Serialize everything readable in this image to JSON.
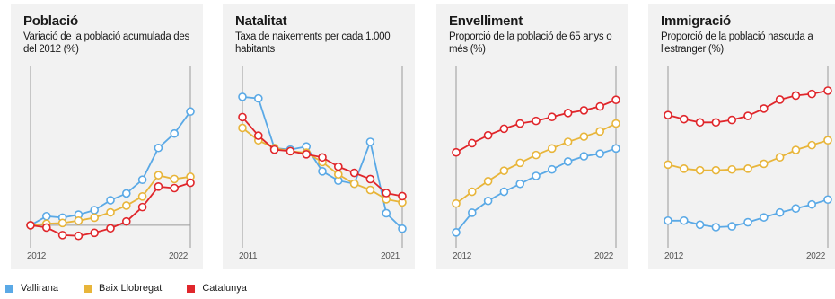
{
  "colors": {
    "Vallirana": "#5aa9e6",
    "Baix Llobregat": "#e8b53a",
    "Catalunya": "#e0262b",
    "axis": "#9a9a9a",
    "bg": "#f2f2f2"
  },
  "legend": [
    {
      "name": "Vallirana",
      "color": "#5aa9e6"
    },
    {
      "name": "Baix Llobregat",
      "color": "#e8b53a"
    },
    {
      "name": "Catalunya",
      "color": "#e0262b"
    }
  ],
  "panels": [
    {
      "title": "Població",
      "subtitle": "Variació de la població acumulada des del 2012 (%)",
      "first_tick": "2012",
      "last_tick": "2022"
    },
    {
      "title": "Natalitat",
      "subtitle": "Taxa de naixements per cada 1.000 habitants",
      "first_tick": "2011",
      "last_tick": "2021"
    },
    {
      "title": "Envelliment",
      "subtitle": "Proporció de la població de 65 anys o més (%)",
      "first_tick": "2012",
      "last_tick": "2022"
    },
    {
      "title": "Immigració",
      "subtitle": "Proporció de la població nascuda a l'estranger (%)",
      "first_tick": "2012",
      "last_tick": "2022"
    }
  ],
  "chart_data": [
    {
      "type": "line",
      "title": "Població",
      "subtitle": "Variació de la població acumulada des del 2012 (%)",
      "x": [
        2012,
        2013,
        2014,
        2015,
        2016,
        2017,
        2018,
        2019,
        2020,
        2021,
        2022
      ],
      "ylim": [
        -2.5,
        20
      ],
      "baseline": 0,
      "series": [
        {
          "name": "Vallirana",
          "values": [
            0,
            1.2,
            1,
            1.4,
            2,
            3.3,
            4.2,
            6,
            10.2,
            12.1,
            15
          ]
        },
        {
          "name": "Baix Llobregat",
          "values": [
            0,
            0.2,
            0.3,
            0.6,
            1,
            1.7,
            2.6,
            3.8,
            6.6,
            6.1,
            6.4
          ]
        },
        {
          "name": "Catalunya",
          "values": [
            0,
            -0.3,
            -1.3,
            -1.4,
            -1,
            -0.4,
            0.5,
            2.4,
            5.1,
            4.9,
            5.6
          ]
        }
      ]
    },
    {
      "type": "line",
      "title": "Natalitat",
      "subtitle": "Taxa de naixements per cada 1.000 habitants",
      "x": [
        2011,
        2012,
        2013,
        2014,
        2015,
        2016,
        2017,
        2018,
        2019,
        2020,
        2021
      ],
      "ylim": [
        4,
        15
      ],
      "series": [
        {
          "name": "Vallirana",
          "values": [
            13.5,
            13.4,
            10.2,
            10.1,
            10.3,
            8.7,
            8.1,
            7.9,
            10.6,
            6,
            5
          ]
        },
        {
          "name": "Baix Llobregat",
          "values": [
            11.5,
            10.7,
            10.2,
            10,
            9.9,
            9.3,
            8.5,
            7.9,
            7.5,
            6.9,
            6.7
          ]
        },
        {
          "name": "Catalunya",
          "values": [
            12.2,
            11,
            10.1,
            10,
            9.8,
            9.6,
            9,
            8.6,
            8.2,
            7.3,
            7.1
          ]
        }
      ]
    },
    {
      "type": "line",
      "title": "Envelliment",
      "subtitle": "Proporció de la població de 65 anys o més (%)",
      "x": [
        2012,
        2013,
        2014,
        2015,
        2016,
        2017,
        2018,
        2019,
        2020,
        2021,
        2022
      ],
      "ylim": [
        8,
        21
      ],
      "series": [
        {
          "name": "Vallirana",
          "values": [
            8.9,
            10.4,
            11.3,
            12,
            12.6,
            13.2,
            13.7,
            14.3,
            14.7,
            14.9,
            15.3
          ]
        },
        {
          "name": "Baix Llobregat",
          "values": [
            11.1,
            12,
            12.8,
            13.6,
            14.2,
            14.8,
            15.3,
            15.8,
            16.2,
            16.6,
            17.2
          ]
        },
        {
          "name": "Catalunya",
          "values": [
            15,
            15.7,
            16.3,
            16.8,
            17.2,
            17.4,
            17.7,
            18,
            18.2,
            18.5,
            19
          ]
        }
      ]
    },
    {
      "type": "line",
      "title": "Immigració",
      "subtitle": "Proporció de la població nascuda a l'estranger (%)",
      "x": [
        2012,
        2013,
        2014,
        2015,
        2016,
        2017,
        2018,
        2019,
        2020,
        2021,
        2022
      ],
      "ylim": [
        5,
        26
      ],
      "series": [
        {
          "name": "Vallirana",
          "values": [
            7.9,
            7.9,
            7.4,
            7.1,
            7.2,
            7.7,
            8.3,
            8.9,
            9.4,
            9.9,
            10.5
          ]
        },
        {
          "name": "Baix Llobregat",
          "values": [
            14.8,
            14.3,
            14.1,
            14.1,
            14.2,
            14.3,
            14.9,
            15.7,
            16.6,
            17.2,
            17.8
          ]
        },
        {
          "name": "Catalunya",
          "values": [
            20.9,
            20.4,
            20,
            20,
            20.3,
            20.8,
            21.7,
            22.8,
            23.3,
            23.5,
            23.9
          ]
        }
      ]
    }
  ]
}
